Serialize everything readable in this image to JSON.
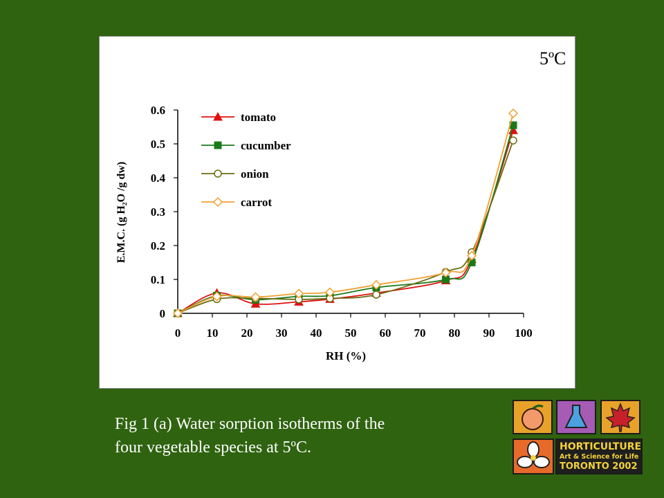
{
  "caption": {
    "line1": "Fig 1 (a) Water sorption isotherms of the",
    "line2": "four vegetable species at 5ºC."
  },
  "logo": {
    "line1": "HORTICULTURE",
    "line2": "Art & Science for Life",
    "line3": "TORONTO 2002",
    "icons": [
      "peach-icon",
      "flask-icon",
      "maple-leaf-icon",
      "trillium-icon"
    ]
  },
  "chart_data": {
    "type": "line",
    "title": "5ºC",
    "xlabel": "RH (%)",
    "ylabel": "E.M.C. (g H₂O /g dw)",
    "xlim": [
      0,
      100
    ],
    "ylim": [
      0,
      0.6
    ],
    "xticks": [
      "0",
      "10",
      "20",
      "30",
      "40",
      "50",
      "60",
      "70",
      "80",
      "90",
      "100"
    ],
    "yticks": [
      "0",
      "0.1",
      "0.2",
      "0.3",
      "0.4",
      "0.5",
      "0.6"
    ],
    "legend_position": "top-left",
    "grid": false,
    "series": [
      {
        "name": "tomato",
        "color": "#e01010",
        "marker": "triangle",
        "points": [
          [
            0,
            0
          ],
          [
            11.3,
            0.06
          ],
          [
            22.5,
            0.028
          ],
          [
            35,
            0.034
          ],
          [
            44,
            0.042
          ],
          [
            57.4,
            0.06
          ],
          [
            77.5,
            0.097
          ],
          [
            85,
            0.16
          ],
          [
            97,
            0.54
          ]
        ]
      },
      {
        "name": "cucumber",
        "color": "#1a7a1a",
        "marker": "square",
        "points": [
          [
            0,
            0
          ],
          [
            11.3,
            0.052
          ],
          [
            22.5,
            0.04
          ],
          [
            35,
            0.05
          ],
          [
            44,
            0.052
          ],
          [
            57.4,
            0.076
          ],
          [
            77.5,
            0.1
          ],
          [
            85,
            0.15
          ],
          [
            97,
            0.555
          ]
        ]
      },
      {
        "name": "onion",
        "color": "#6b6b12",
        "marker": "circle",
        "points": [
          [
            0,
            0
          ],
          [
            11.3,
            0.042
          ],
          [
            22.5,
            0.044
          ],
          [
            35,
            0.041
          ],
          [
            44,
            0.044
          ],
          [
            57.4,
            0.055
          ],
          [
            77.5,
            0.122
          ],
          [
            85,
            0.18
          ],
          [
            97,
            0.51
          ]
        ]
      },
      {
        "name": "carrot",
        "color": "#f0a030",
        "marker": "diamond",
        "points": [
          [
            0,
            0
          ],
          [
            11.3,
            0.05
          ],
          [
            22.5,
            0.048
          ],
          [
            35,
            0.058
          ],
          [
            44,
            0.062
          ],
          [
            57.4,
            0.084
          ],
          [
            77.5,
            0.12
          ],
          [
            85,
            0.17
          ],
          [
            97,
            0.59
          ]
        ]
      }
    ]
  }
}
